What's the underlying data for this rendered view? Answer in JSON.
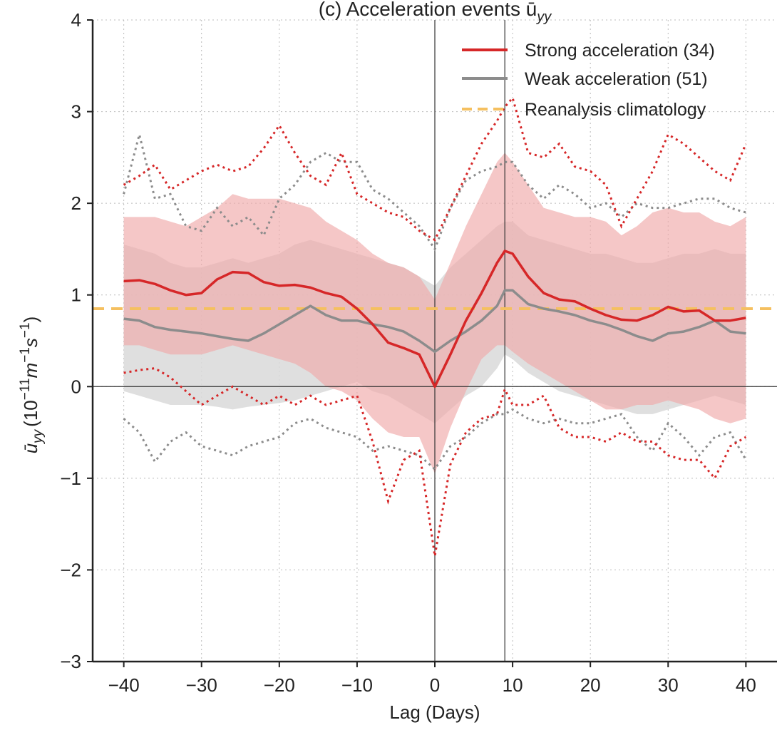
{
  "chart_data": {
    "type": "line",
    "title": "(c) Acceleration events ū",
    "title_sub": "yy",
    "xlabel": "Lag (Days)",
    "ylabel": "ū",
    "ylabel_sub": "yy",
    "ylabel_unit": "(10",
    "ylabel_exp1": "−11",
    "ylabel_m": "m",
    "ylabel_exp2": "−1",
    "ylabel_s": "s",
    "ylabel_exp3": "−1",
    "ylabel_close": ")",
    "xlim": [
      -44,
      44
    ],
    "ylim": [
      -3,
      4
    ],
    "xticks": [
      -40,
      -30,
      -20,
      -10,
      0,
      10,
      20,
      30,
      40
    ],
    "xtick_labels": [
      "−40",
      "−30",
      "−20",
      "−10",
      "0",
      "10",
      "20",
      "30",
      "40"
    ],
    "yticks": [
      -3,
      -2,
      -1,
      0,
      1,
      2,
      3,
      4
    ],
    "ytick_labels": [
      "−3",
      "−2",
      "−1",
      "0",
      "1",
      "2",
      "3",
      "4"
    ],
    "grid": true,
    "vlines": [
      0,
      9
    ],
    "hline": 0,
    "legend_position": "top-right",
    "colors": {
      "strong": "#d62728",
      "strong_band": "#f0a9a9",
      "weak": "#8c8c8c",
      "weak_band": "#d9d9d9",
      "climatology": "#f5c060",
      "axis": "#222222",
      "grid": "#bbbbbb"
    },
    "climatology": 0.85,
    "series": [
      {
        "name": "Strong acceleration (34)",
        "key": "strong",
        "x": [
          -40,
          -38,
          -36,
          -34,
          -32,
          -30,
          -28,
          -26,
          -24,
          -22,
          -20,
          -18,
          -16,
          -14,
          -12,
          -10,
          -8,
          -6,
          -4,
          -2,
          0,
          2,
          4,
          6,
          8,
          9,
          10,
          12,
          14,
          16,
          18,
          20,
          22,
          24,
          26,
          28,
          30,
          32,
          34,
          36,
          38,
          40
        ],
        "mean": [
          1.15,
          1.16,
          1.12,
          1.05,
          1.0,
          1.02,
          1.17,
          1.25,
          1.24,
          1.14,
          1.1,
          1.11,
          1.08,
          1.02,
          0.98,
          0.85,
          0.68,
          0.48,
          0.42,
          0.35,
          0.0,
          0.35,
          0.72,
          1.02,
          1.35,
          1.48,
          1.45,
          1.2,
          1.02,
          0.95,
          0.93,
          0.85,
          0.78,
          0.73,
          0.72,
          0.78,
          0.87,
          0.82,
          0.83,
          0.72,
          0.72,
          0.75
        ],
        "lower": [
          0.45,
          0.45,
          0.4,
          0.35,
          0.35,
          0.35,
          0.4,
          0.45,
          0.4,
          0.35,
          0.3,
          0.25,
          0.15,
          0.0,
          -0.05,
          -0.15,
          -0.35,
          -0.5,
          -0.55,
          -0.55,
          -0.95,
          -0.45,
          -0.05,
          0.3,
          0.45,
          0.45,
          0.38,
          0.25,
          0.15,
          0.05,
          -0.05,
          -0.15,
          -0.25,
          -0.25,
          -0.2,
          -0.2,
          -0.15,
          -0.2,
          -0.25,
          -0.35,
          -0.4,
          -0.35
        ],
        "upper": [
          1.85,
          1.85,
          1.85,
          1.8,
          1.75,
          1.85,
          1.95,
          2.1,
          2.05,
          2.05,
          2.05,
          2.0,
          1.95,
          1.8,
          1.7,
          1.6,
          1.45,
          1.35,
          1.3,
          1.2,
          0.95,
          1.35,
          1.75,
          2.1,
          2.45,
          2.55,
          2.45,
          2.2,
          1.95,
          1.9,
          1.85,
          1.85,
          1.8,
          1.65,
          1.75,
          1.9,
          1.95,
          1.9,
          1.9,
          1.8,
          1.75,
          1.85
        ],
        "min": [
          0.15,
          0.18,
          0.2,
          0.1,
          -0.05,
          -0.2,
          -0.1,
          0.0,
          -0.1,
          -0.2,
          -0.1,
          -0.2,
          -0.1,
          -0.2,
          -0.15,
          -0.1,
          -0.6,
          -1.25,
          -0.8,
          -0.7,
          -1.85,
          -0.85,
          -0.5,
          -0.35,
          -0.3,
          -0.03,
          -0.2,
          -0.2,
          -0.1,
          -0.45,
          -0.55,
          -0.55,
          -0.6,
          -0.5,
          -0.6,
          -0.6,
          -0.75,
          -0.8,
          -0.8,
          -1.0,
          -0.65,
          -0.55
        ],
        "max": [
          2.2,
          2.3,
          2.42,
          2.15,
          2.25,
          2.35,
          2.42,
          2.35,
          2.4,
          2.6,
          2.85,
          2.55,
          2.3,
          2.2,
          2.55,
          2.1,
          2.0,
          1.9,
          1.85,
          1.7,
          1.6,
          1.95,
          2.3,
          2.65,
          2.9,
          3.05,
          3.15,
          2.55,
          2.5,
          2.65,
          2.4,
          2.35,
          2.2,
          1.75,
          2.05,
          2.35,
          2.75,
          2.65,
          2.5,
          2.35,
          2.25,
          2.65
        ]
      },
      {
        "name": "Weak acceleration (51)",
        "key": "weak",
        "x": [
          -40,
          -38,
          -36,
          -34,
          -32,
          -30,
          -28,
          -26,
          -24,
          -22,
          -20,
          -18,
          -16,
          -14,
          -12,
          -10,
          -8,
          -6,
          -4,
          -2,
          0,
          2,
          4,
          6,
          8,
          9,
          10,
          12,
          14,
          16,
          18,
          20,
          22,
          24,
          26,
          28,
          30,
          32,
          34,
          36,
          38,
          40
        ],
        "mean": [
          0.74,
          0.72,
          0.65,
          0.62,
          0.6,
          0.58,
          0.55,
          0.52,
          0.5,
          0.58,
          0.68,
          0.78,
          0.88,
          0.78,
          0.72,
          0.72,
          0.68,
          0.65,
          0.6,
          0.5,
          0.38,
          0.5,
          0.6,
          0.72,
          0.88,
          1.05,
          1.05,
          0.9,
          0.85,
          0.82,
          0.78,
          0.72,
          0.68,
          0.62,
          0.55,
          0.5,
          0.58,
          0.6,
          0.65,
          0.72,
          0.6,
          0.58
        ],
        "lower": [
          -0.05,
          -0.1,
          -0.15,
          -0.2,
          -0.2,
          -0.2,
          -0.22,
          -0.25,
          -0.22,
          -0.2,
          -0.18,
          -0.15,
          -0.1,
          -0.05,
          0.0,
          0.05,
          -0.05,
          -0.1,
          -0.2,
          -0.3,
          -0.4,
          -0.25,
          -0.1,
          0.0,
          0.2,
          0.35,
          0.3,
          0.15,
          0.05,
          -0.05,
          -0.1,
          -0.15,
          -0.2,
          -0.25,
          -0.3,
          -0.3,
          -0.25,
          -0.2,
          -0.15,
          -0.1,
          -0.15,
          -0.2
        ],
        "upper": [
          1.55,
          1.5,
          1.45,
          1.35,
          1.3,
          1.3,
          1.35,
          1.4,
          1.35,
          1.4,
          1.45,
          1.55,
          1.6,
          1.55,
          1.5,
          1.45,
          1.4,
          1.35,
          1.3,
          1.2,
          1.1,
          1.3,
          1.45,
          1.6,
          1.75,
          1.8,
          1.8,
          1.65,
          1.6,
          1.55,
          1.5,
          1.45,
          1.45,
          1.4,
          1.35,
          1.35,
          1.4,
          1.45,
          1.45,
          1.5,
          1.45,
          1.45
        ],
        "min": [
          -0.35,
          -0.5,
          -0.82,
          -0.6,
          -0.5,
          -0.65,
          -0.7,
          -0.75,
          -0.65,
          -0.6,
          -0.55,
          -0.4,
          -0.35,
          -0.45,
          -0.5,
          -0.55,
          -0.7,
          -0.65,
          -0.7,
          -0.75,
          -0.9,
          -0.65,
          -0.55,
          -0.4,
          -0.3,
          -0.3,
          -0.25,
          -0.35,
          -0.4,
          -0.35,
          -0.4,
          -0.4,
          -0.35,
          -0.3,
          -0.55,
          -0.7,
          -0.4,
          -0.55,
          -0.75,
          -0.55,
          -0.5,
          -0.8
        ],
        "max": [
          2.1,
          2.75,
          2.05,
          2.1,
          1.75,
          1.7,
          1.95,
          1.75,
          1.85,
          1.65,
          2.05,
          2.2,
          2.45,
          2.55,
          2.45,
          2.45,
          2.15,
          2.05,
          1.9,
          1.75,
          1.5,
          1.95,
          2.25,
          2.35,
          2.4,
          2.45,
          2.45,
          2.2,
          2.05,
          2.2,
          2.1,
          1.95,
          2.0,
          1.85,
          2.0,
          1.95,
          1.95,
          2.0,
          2.05,
          2.05,
          1.95,
          1.9
        ]
      }
    ],
    "climatology_label": "Reanalysis climatology"
  }
}
